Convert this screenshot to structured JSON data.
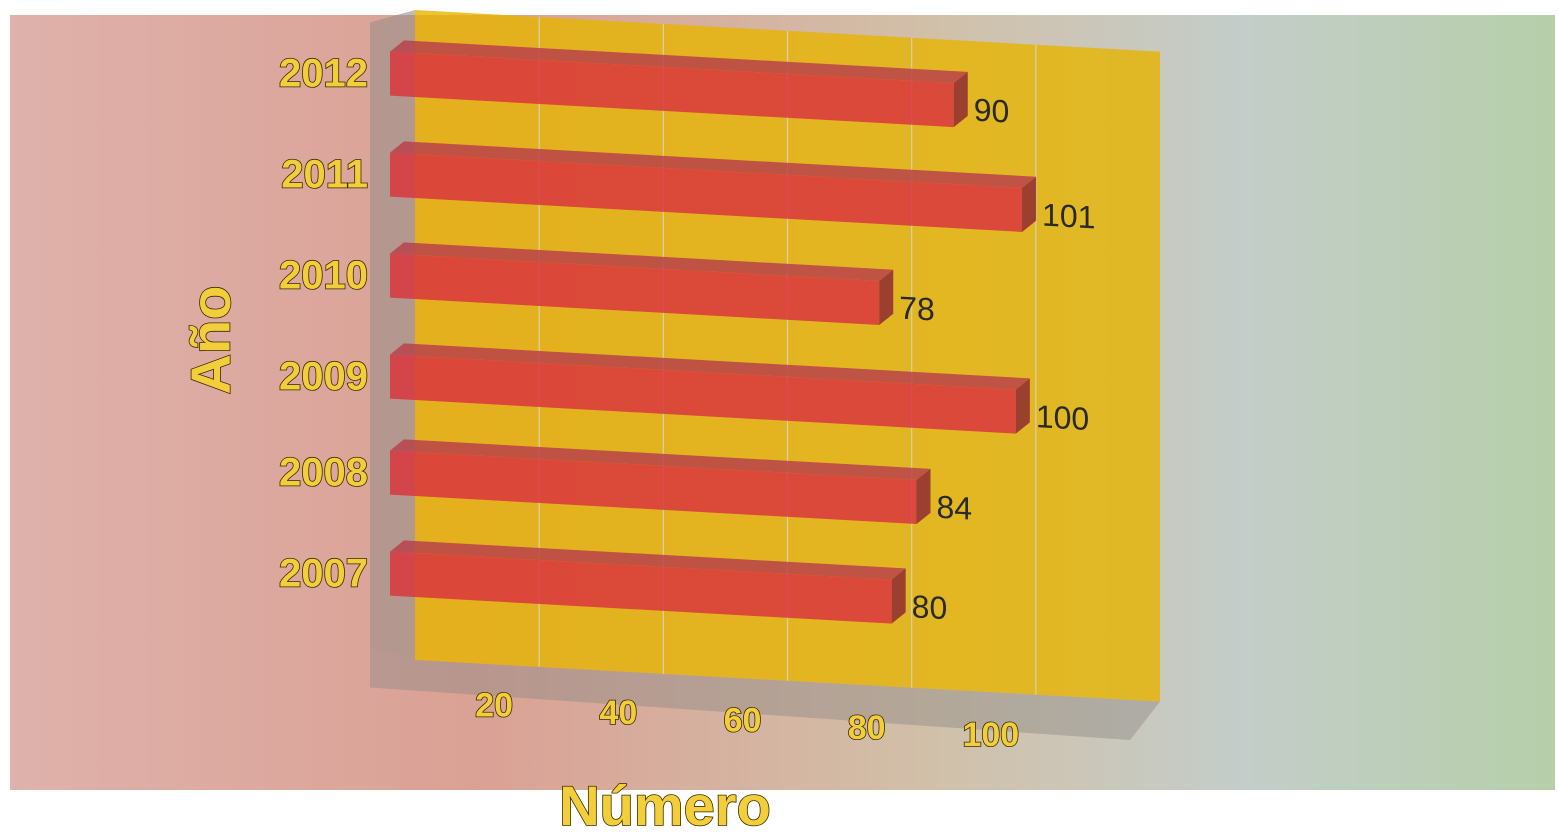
{
  "chart_data": {
    "type": "bar",
    "orientation": "horizontal",
    "x_label": "Número",
    "y_label": "Año",
    "categories": [
      "2012",
      "2011",
      "2010",
      "2009",
      "2008",
      "2007"
    ],
    "values": [
      90,
      101,
      78,
      100,
      84,
      80
    ],
    "color": "#d9363e",
    "wall_color": "#e6b400",
    "xlim": [
      0,
      120
    ],
    "xticks": [
      20,
      40,
      60,
      80,
      100
    ],
    "grid": true
  }
}
